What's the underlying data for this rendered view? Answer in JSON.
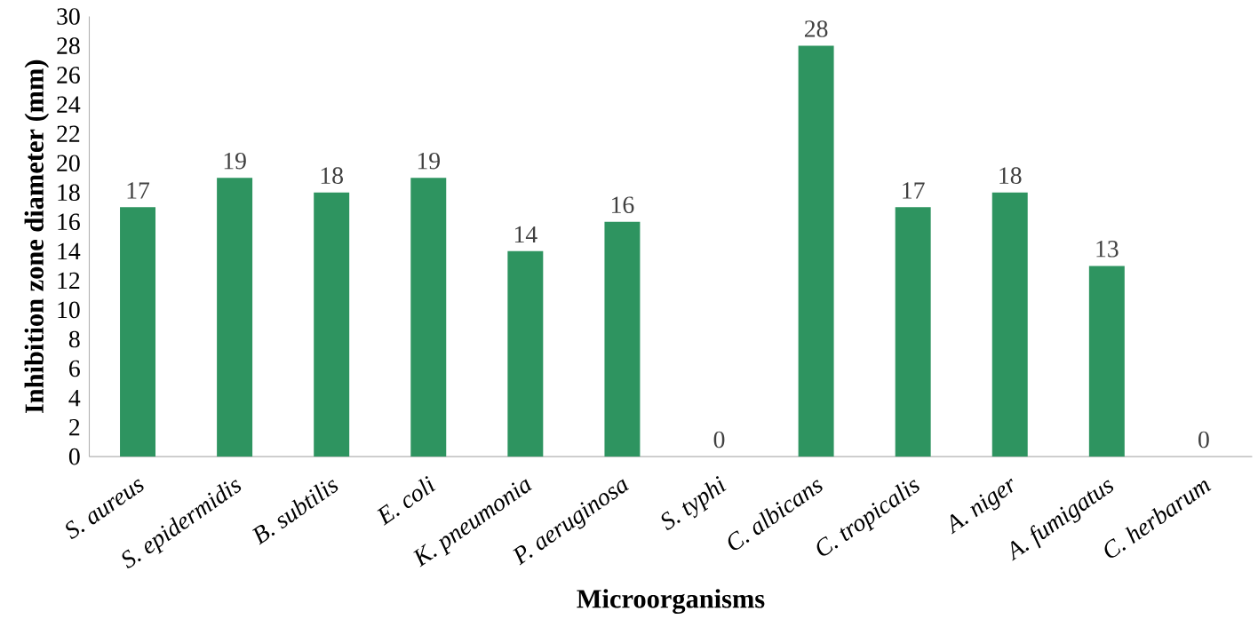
{
  "chart_data": {
    "type": "bar",
    "xlabel": "Microorganisms",
    "ylabel": "Inhibition zone diameter (mm)",
    "categories": [
      "S. aureus",
      "S. epidermidis",
      "B. subtilis",
      "E. coli",
      "K. pneumonia",
      "P. aeruginosa",
      "S. typhi",
      "C. albicans",
      "C. tropicalis",
      "A.        niger",
      "A. fumigatus",
      "C. herbarum"
    ],
    "values": [
      17,
      19,
      18,
      19,
      14,
      16,
      0,
      28,
      17,
      18,
      13,
      0
    ],
    "color": "#2e9460",
    "ylim": [
      0,
      30
    ],
    "yticks": [
      0,
      2,
      4,
      6,
      8,
      10,
      12,
      14,
      16,
      18,
      20,
      22,
      24,
      26,
      28,
      30
    ],
    "data_labels": true
  }
}
